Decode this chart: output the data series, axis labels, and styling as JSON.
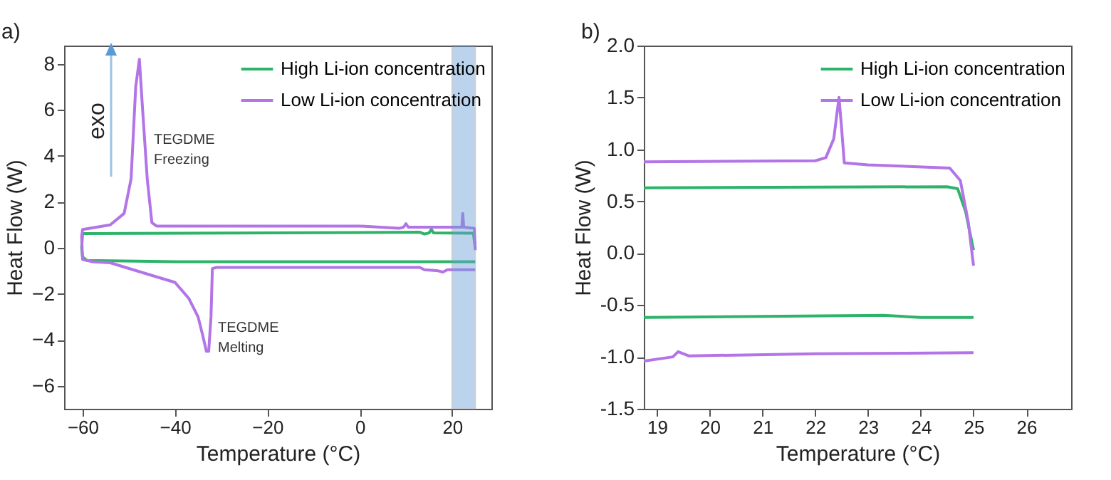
{
  "chart_data": [
    {
      "type": "line",
      "xlabel": "Temperature (°C)",
      "ylabel": "Heat Flow (W)",
      "xlim": [
        -64,
        28.5
      ],
      "ylim": [
        -7,
        8.8
      ],
      "xticks": [
        -60,
        -40,
        -20,
        0,
        20
      ],
      "yticks": [
        -6,
        -4,
        -2,
        0,
        2,
        4,
        6,
        8
      ],
      "legend": "top right",
      "bands": [
        {
          "axis": "x",
          "from": 20,
          "to": 25,
          "color": "#6a9fd8"
        }
      ],
      "annotations": [
        "a)",
        "exo",
        "TEGDME\nFreezing",
        "TEGDME\nMelting"
      ],
      "series": [
        {
          "name": "High Li-ion concentration",
          "color": "#2eb36a",
          "x": [
            25,
            24.6,
            16,
            15.5,
            15,
            14,
            13,
            -60,
            -60.2,
            -60,
            -59,
            -40,
            25
          ],
          "values": [
            0,
            0.64,
            0.65,
            0.8,
            0.65,
            0.6,
            0.68,
            0.62,
            0,
            -0.4,
            -0.55,
            -0.6,
            -0.6
          ]
        },
        {
          "name": "Low Li-ion concentration",
          "color": "#b274e6",
          "x": [
            25,
            24.8,
            22.5,
            22.3,
            22.1,
            15,
            10.5,
            10,
            9.5,
            8.5,
            0,
            -44,
            -45,
            -46,
            -47,
            -47.7,
            -48.5,
            -49.5,
            -51,
            -54,
            -57,
            -60,
            -60.2,
            -60,
            -58,
            -54,
            -45,
            -40,
            -37,
            -35,
            -34,
            -33.2,
            -32.7,
            -32.2,
            -31.9,
            -31,
            0,
            13,
            14,
            17,
            18,
            19,
            25
          ],
          "values": [
            -0.1,
            0.85,
            0.9,
            1.5,
            0.9,
            0.9,
            0.9,
            1.05,
            0.9,
            0.85,
            0.95,
            0.95,
            1.1,
            3,
            6,
            8.2,
            7,
            3,
            1.5,
            1,
            0.9,
            0.8,
            0.5,
            -0.5,
            -0.6,
            -0.65,
            -1.2,
            -1.5,
            -2.2,
            -3,
            -3.8,
            -4.5,
            -4.5,
            -3,
            -0.9,
            -0.85,
            -0.85,
            -0.85,
            -0.95,
            -1,
            -1.05,
            -0.95,
            -0.95
          ]
        }
      ]
    },
    {
      "type": "line",
      "xlabel": "Temperature (°C)",
      "ylabel": "Heat Flow (W)",
      "xlim": [
        18.75,
        26.85
      ],
      "ylim": [
        -1.5,
        2.0
      ],
      "xticks": [
        19,
        20,
        21,
        22,
        23,
        24,
        25,
        26
      ],
      "yticks": [
        {
          "value": -1.5,
          "label": "-1.5"
        },
        {
          "value": -1,
          "label": "-1.0"
        },
        {
          "value": -0.5,
          "label": "-0.5"
        },
        {
          "value": 0,
          "label": "0.0"
        },
        {
          "value": 0.5,
          "label": "0.5"
        },
        {
          "value": 1,
          "label": "1.0"
        },
        {
          "value": 1.5,
          "label": "1.5"
        },
        {
          "value": 2,
          "label": "2.0"
        }
      ],
      "legend": "top right",
      "annotations": [
        "b)"
      ],
      "series": [
        {
          "name": "High Li-ion concentration",
          "color": "#2eb36a",
          "x": [
            25,
            24.85,
            24.7,
            24.5,
            18.75,
            null,
            18.75,
            23.3,
            24,
            25
          ],
          "values": [
            0.03,
            0.4,
            0.62,
            0.64,
            0.63,
            null,
            -0.62,
            -0.6,
            -0.62,
            -0.62
          ]
        },
        {
          "name": "Low Li-ion concentration",
          "color": "#b274e6",
          "x": [
            25,
            24.9,
            24.75,
            24.55,
            23,
            22.55,
            22.5,
            22.45,
            22.35,
            22.2,
            22,
            18.75,
            null,
            18.75,
            19.3,
            19.4,
            19.6,
            22,
            25
          ],
          "values": [
            -0.12,
            0.3,
            0.7,
            0.82,
            0.85,
            0.87,
            1.2,
            1.5,
            1.1,
            0.92,
            0.89,
            0.88,
            null,
            -1.04,
            -1,
            -0.95,
            -0.99,
            -0.97,
            -0.96
          ]
        }
      ]
    }
  ]
}
